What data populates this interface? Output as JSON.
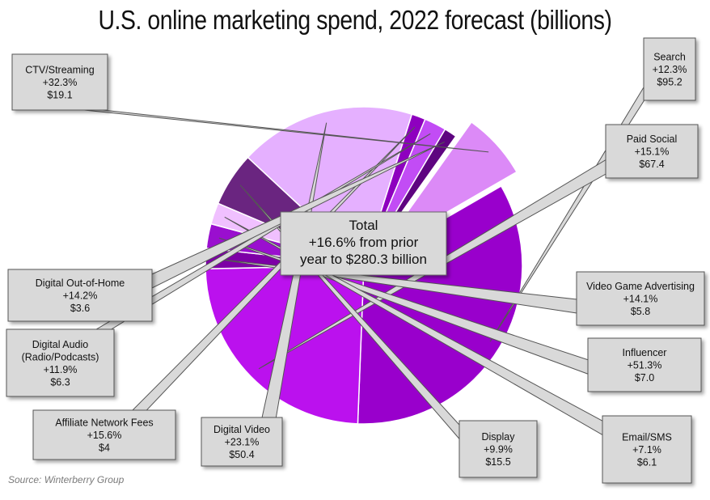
{
  "chart_data": {
    "type": "pie",
    "title": "U.S. online marketing spend, 2022 forecast (billions)",
    "center_label": [
      "Total",
      "+16.6% from prior",
      "year to $280.3 billion"
    ],
    "source": "Source:  Winterberry  Group",
    "slices": [
      {
        "name": "Search",
        "growth": "+12.3%",
        "value": 95.2,
        "value_label": "$95.2",
        "color": "#9900cc"
      },
      {
        "name": "Paid Social",
        "growth": "+15.1%",
        "value": 67.4,
        "value_label": "$67.4",
        "color": "#bb11ee"
      },
      {
        "name": "Video Game Advertising",
        "growth": "+14.1%",
        "value": 5.8,
        "value_label": "$5.8",
        "color": "#7d00a6"
      },
      {
        "name": "Influencer",
        "growth": "+51.3%",
        "value": 7.0,
        "value_label": "$7.0",
        "color": "#9a0fcf"
      },
      {
        "name": "Email/SMS",
        "growth": "+7.1%",
        "value": 6.1,
        "value_label": "$6.1",
        "color": "#f0c0ff"
      },
      {
        "name": "Display",
        "growth": "+9.9%",
        "value": 15.5,
        "value_label": "$15.5",
        "color": "#6a2580"
      },
      {
        "name": "Digital Video",
        "growth": "+23.1%",
        "value": 50.4,
        "value_label": "$50.4",
        "color": "#e5b0ff"
      },
      {
        "name": "Affiliate Network Fees",
        "growth": "+15.6%",
        "value": 4,
        "value_label": "$4",
        "color": "#8e00bf"
      },
      {
        "name": "Digital Audio (Radio/Podcasts)",
        "name_lines": [
          "Digital Audio",
          "(Radio/Podcasts)"
        ],
        "growth": "+11.9%",
        "value": 6.3,
        "value_label": "$6.3",
        "color": "#c24cf5"
      },
      {
        "name": "Digital Out-of-Home",
        "growth": "+14.2%",
        "value": 3.6,
        "value_label": "$3.6",
        "color": "#5e0480"
      },
      {
        "name": "CTV/Streaming",
        "growth": "+32.3%",
        "value": 19.1,
        "value_label": "$19.1",
        "color": "#dc8af7",
        "exploded": true
      }
    ]
  }
}
